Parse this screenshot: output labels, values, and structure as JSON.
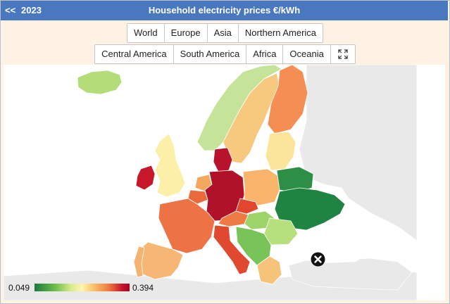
{
  "header": {
    "back_label": "<<",
    "year": "2023",
    "title": "Household electricity prices €/kWh",
    "bg_color": "#4a78be"
  },
  "region_rows": [
    [
      "World",
      "Europe",
      "Asia",
      "Northern America"
    ],
    [
      "Central America",
      "South America",
      "Africa",
      "Oceania"
    ]
  ],
  "fullscreen_icon": "expand-icon",
  "close_icon": "close-icon",
  "legend": {
    "min_label": "0.049",
    "max_label": "0.394",
    "color_low": "#1a7a3c",
    "color_mid": "#fff5b0",
    "color_high": "#a50026"
  },
  "map_colors": {
    "iceland": "#b4dc78",
    "norway": "#c6e39a",
    "sweden": "#f7c97f",
    "finland": "#f58e52",
    "denmark": "#b8132d",
    "uk": "#fcf0a8",
    "ireland": "#c6172b",
    "netherlands": "#f3a85d",
    "belgium": "#eb6a3c",
    "germany": "#b0122a",
    "poland": "#f8b46a",
    "baltics": "#fbe59a",
    "france": "#ed7344",
    "spain": "#f5b773",
    "portugal": "#f5b370",
    "italy": "#e0482f",
    "czechia": "#e3462f",
    "austria": "#ee7a44",
    "ukraine": "#1f8441",
    "belarus": "#2d8f46",
    "balkans": "#79c459",
    "hungary": "#9cd46a",
    "romania": "#b6e07e",
    "greece": "#f5c37a",
    "non_data": "#e9e9e9"
  }
}
